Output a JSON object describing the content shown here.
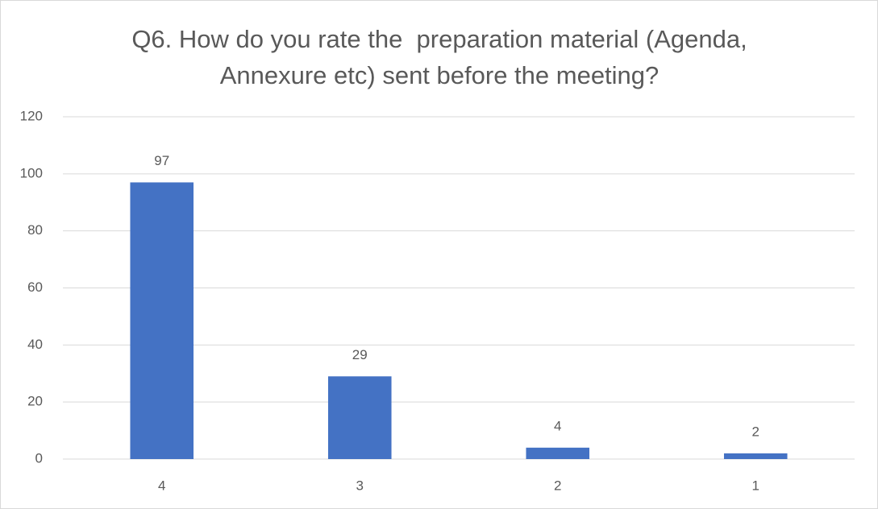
{
  "chart_data": {
    "type": "bar",
    "title": "Q6. How do you rate the  preparation material (Agenda, Annexure etc) sent before the meeting?",
    "categories": [
      "4",
      "3",
      "2",
      "1"
    ],
    "values": [
      97,
      29,
      4,
      2
    ],
    "color": "#4472c4",
    "ylim": [
      0,
      120
    ],
    "yticks": [
      0,
      20,
      40,
      60,
      80,
      100,
      120
    ],
    "grid": true
  }
}
